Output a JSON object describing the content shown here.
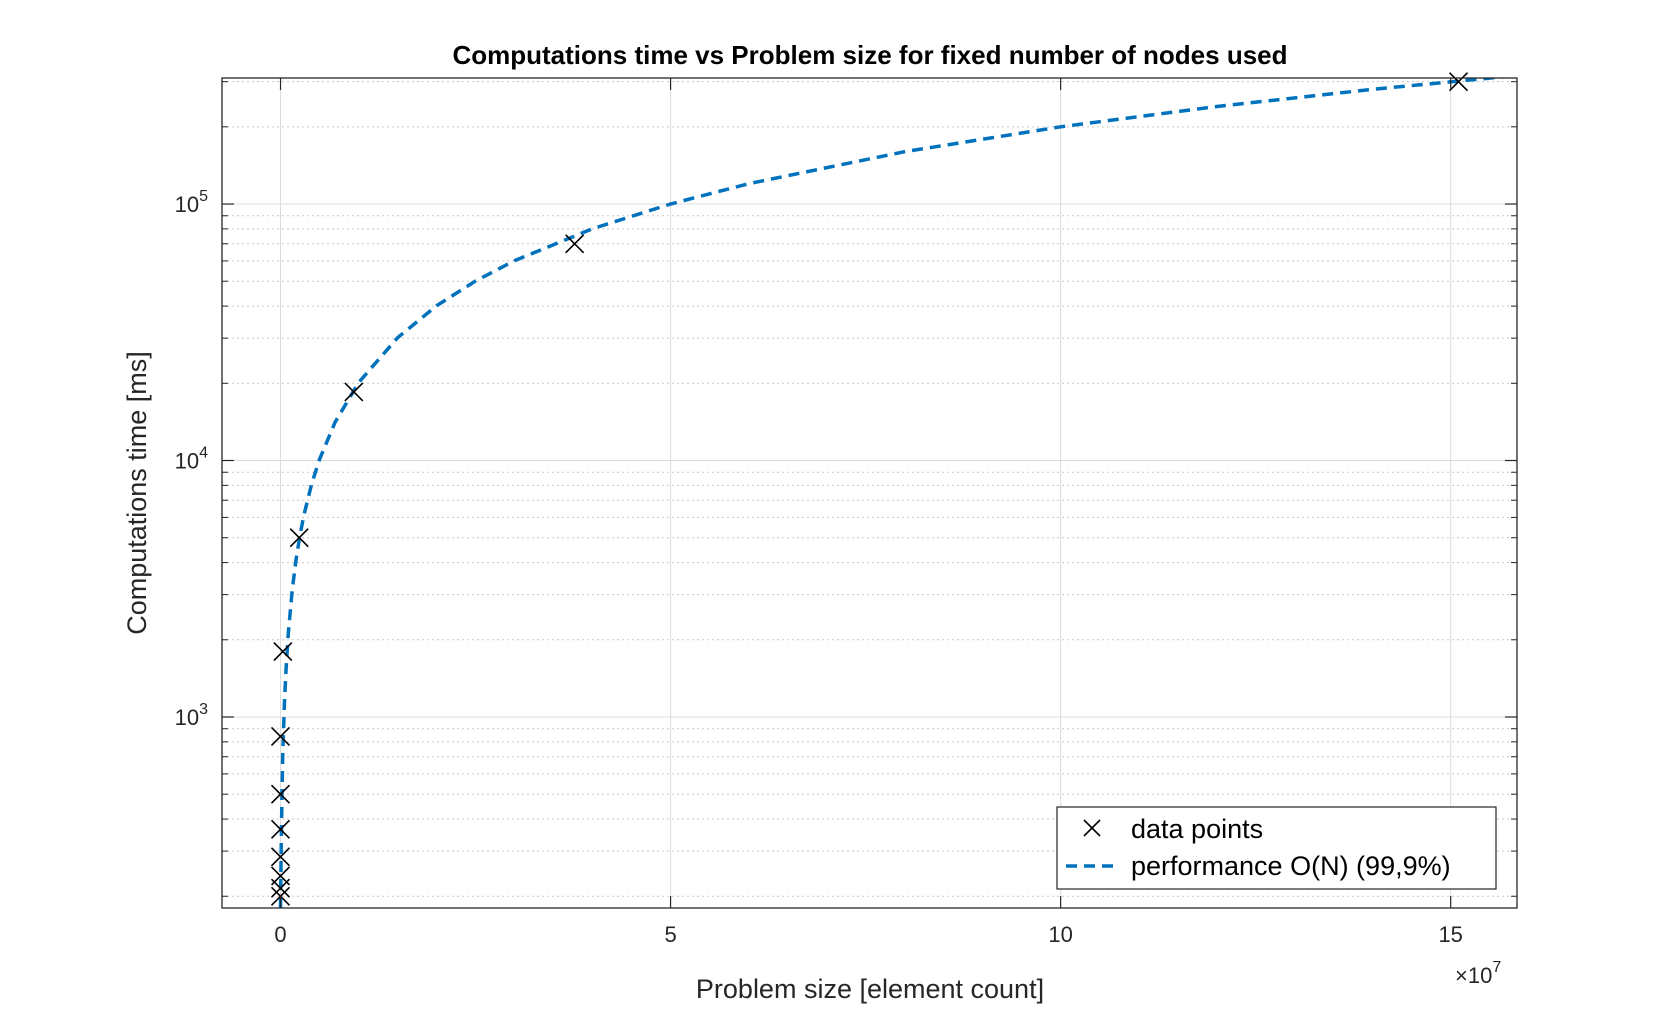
{
  "chart_data": {
    "type": "scatter",
    "title": "Computations time vs Problem size for fixed number of nodes used",
    "xlabel": "Problem size [element count]",
    "ylabel": "Computations time [ms]",
    "x_exponent_label": "×10",
    "x_exponent_power": "7",
    "x_scale": "linear",
    "y_scale": "log",
    "xlim": [
      -7500000,
      158500000
    ],
    "ylim": [
      180,
      310000
    ],
    "x_ticks": [
      0,
      50000000,
      100000000,
      150000000
    ],
    "x_tick_labels": [
      "0",
      "5",
      "10",
      "15"
    ],
    "y_ticks": [
      1000,
      10000,
      100000
    ],
    "y_tick_labels": [
      {
        "base": "10",
        "exp": "3"
      },
      {
        "base": "10",
        "exp": "4"
      },
      {
        "base": "10",
        "exp": "5"
      }
    ],
    "grid": true,
    "legend_position": "bottom-right",
    "series": [
      {
        "name": "data points",
        "style": "x-marker",
        "color": "#000000",
        "x": [
          0,
          0,
          0,
          0,
          0,
          0,
          0,
          300000,
          2400000,
          9400000,
          37700000,
          151000000
        ],
        "y": [
          200,
          215,
          240,
          285,
          365,
          500,
          840,
          1800,
          5000,
          18500,
          70000,
          300000
        ]
      },
      {
        "name": "performance O(N) (99,9%)",
        "style": "dashed-line",
        "color": "#0072BD",
        "x": [
          0,
          100000,
          200000,
          300000,
          500000,
          700000,
          1000000,
          1500000,
          2000000,
          2500000,
          3000000,
          4000000,
          5000000,
          7000000,
          10000000,
          15000000,
          20000000,
          25000000,
          30000000,
          40000000,
          50000000,
          60000000,
          80000000,
          100000000,
          120000000,
          140000000,
          158500000
        ],
        "y": [
          180,
          330,
          530,
          730,
          1130,
          1520,
          2120,
          3120,
          4120,
          5120,
          6120,
          8120,
          10100,
          14100,
          20100,
          30100,
          40100,
          50100,
          60100,
          80100,
          100000,
          120000,
          160000,
          200000,
          240000,
          280000,
          317000
        ]
      }
    ]
  }
}
